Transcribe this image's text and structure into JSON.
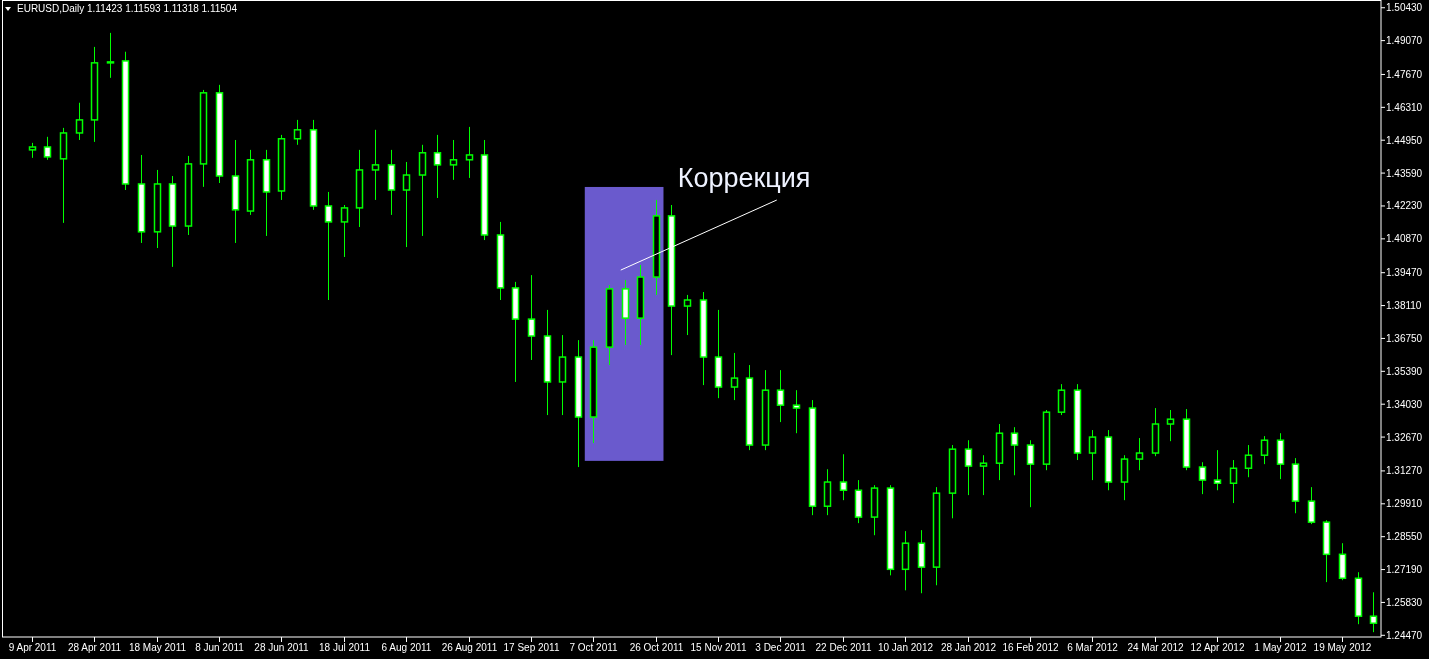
{
  "chart_data": {
    "type": "candlestick",
    "title": "EURUSD,Daily  1.11423 1.11593 1.11318 1.11504",
    "categories": [
      "9 Apr 2011",
      null,
      null,
      null,
      "28 Apr 2011",
      null,
      null,
      null,
      "18 May 2011",
      null,
      null,
      null,
      "8 Jun 2011",
      null,
      null,
      null,
      "28 Jun 2011",
      null,
      null,
      null,
      "18 Jul 2011",
      null,
      null,
      null,
      "6 Aug 2011",
      null,
      null,
      null,
      "26 Aug 2011",
      null,
      null,
      null,
      "17 Sep 2011",
      null,
      null,
      null,
      "7 Oct 2011",
      null,
      null,
      null,
      "26 Oct 2011",
      null,
      null,
      null,
      "15 Nov 2011",
      null,
      null,
      null,
      "3 Dec 2011",
      null,
      null,
      null,
      "22 Dec 2011",
      null,
      null,
      null,
      "10 Jan 2012",
      null,
      null,
      null,
      "28 Jan 2012",
      null,
      null,
      null,
      "16 Feb 2012",
      null,
      null,
      null,
      "6 Mar 2012",
      null,
      null,
      null,
      "24 Mar 2012",
      null,
      null,
      null,
      "12 Apr 2012",
      null,
      null,
      null,
      "1 May 2012",
      null,
      null,
      null,
      "19 May 2012",
      null,
      null
    ],
    "color": "#00ff00",
    "ohlc": [
      [
        1.4455,
        1.4484,
        1.4422,
        1.4467
      ],
      [
        1.4467,
        1.4509,
        1.4414,
        1.4426
      ],
      [
        1.4418,
        1.4546,
        1.4153,
        1.4525
      ],
      [
        1.4525,
        1.465,
        1.4496,
        1.4579
      ],
      [
        1.4579,
        1.4881,
        1.4488,
        1.4815
      ],
      [
        1.4815,
        1.4939,
        1.4753,
        1.4819
      ],
      [
        1.4823,
        1.4861,
        1.4289,
        1.4314
      ],
      [
        1.4314,
        1.4434,
        1.407,
        1.4116
      ],
      [
        1.4116,
        1.4372,
        1.4049,
        1.4314
      ],
      [
        1.4314,
        1.4347,
        1.3971,
        1.414
      ],
      [
        1.414,
        1.443,
        1.4103,
        1.4397
      ],
      [
        1.4397,
        1.4703,
        1.4302,
        1.4691
      ],
      [
        1.4691,
        1.4724,
        1.4318,
        1.4347
      ],
      [
        1.4347,
        1.4496,
        1.407,
        1.4207
      ],
      [
        1.4202,
        1.4455,
        1.4186,
        1.4414
      ],
      [
        1.4414,
        1.4455,
        1.4099,
        1.4281
      ],
      [
        1.4285,
        1.4517,
        1.4248,
        1.4501
      ],
      [
        1.4501,
        1.4579,
        1.4476,
        1.4538
      ],
      [
        1.4538,
        1.4579,
        1.4207,
        1.4223
      ],
      [
        1.4223,
        1.4281,
        1.3834,
        1.4157
      ],
      [
        1.4157,
        1.4227,
        1.4012,
        1.4215
      ],
      [
        1.4215,
        1.4455,
        1.4136,
        1.4372
      ],
      [
        1.4372,
        1.4538,
        1.4248,
        1.4393
      ],
      [
        1.4393,
        1.4455,
        1.4186,
        1.4289
      ],
      [
        1.4289,
        1.4405,
        1.4053,
        1.4351
      ],
      [
        1.4351,
        1.4476,
        1.4099,
        1.4443
      ],
      [
        1.4443,
        1.4517,
        1.4256,
        1.4393
      ],
      [
        1.4393,
        1.4496,
        1.4331,
        1.4414
      ],
      [
        1.4414,
        1.455,
        1.4339,
        1.4434
      ],
      [
        1.4434,
        1.4496,
        1.4082,
        1.4103
      ],
      [
        1.4103,
        1.4157,
        1.3834,
        1.3884
      ],
      [
        1.3884,
        1.3909,
        1.3495,
        1.3755
      ],
      [
        1.3755,
        1.3937,
        1.3586,
        1.3685
      ],
      [
        1.3685,
        1.3793,
        1.3358,
        1.3495
      ],
      [
        1.3495,
        1.3689,
        1.3358,
        1.3598
      ],
      [
        1.3598,
        1.3668,
        1.3143,
        1.335
      ],
      [
        1.335,
        1.3668,
        1.3242,
        1.3639
      ],
      [
        1.3639,
        1.3896,
        1.3565,
        1.388
      ],
      [
        1.388,
        1.3917,
        1.3648,
        1.3759
      ],
      [
        1.3759,
        1.3979,
        1.3648,
        1.3929
      ],
      [
        1.3929,
        1.4248,
        1.3855,
        1.4182
      ],
      [
        1.4182,
        1.4227,
        1.3606,
        1.3809
      ],
      [
        1.3809,
        1.3855,
        1.3689,
        1.3834
      ],
      [
        1.3834,
        1.3867,
        1.3482,
        1.3598
      ],
      [
        1.3598,
        1.3793,
        1.3428,
        1.3474
      ],
      [
        1.3474,
        1.3615,
        1.342,
        1.3511
      ],
      [
        1.3511,
        1.3565,
        1.3213,
        1.3234
      ],
      [
        1.3234,
        1.3544,
        1.3213,
        1.3461
      ],
      [
        1.3461,
        1.3544,
        1.3329,
        1.3399
      ],
      [
        1.3399,
        1.3461,
        1.3283,
        1.3387
      ],
      [
        1.3387,
        1.342,
        1.2944,
        1.2981
      ],
      [
        1.2981,
        1.3134,
        1.2944,
        1.3081
      ],
      [
        1.3081,
        1.3196,
        1.3006,
        1.3047
      ],
      [
        1.3047,
        1.3089,
        1.2911,
        1.2936
      ],
      [
        1.2936,
        1.3068,
        1.2861,
        1.3056
      ],
      [
        1.3056,
        1.3068,
        1.2695,
        1.272
      ],
      [
        1.272,
        1.2878,
        1.2633,
        1.2828
      ],
      [
        1.2828,
        1.2882,
        1.2621,
        1.2729
      ],
      [
        1.2729,
        1.306,
        1.2654,
        1.3035
      ],
      [
        1.3035,
        1.3234,
        1.2931,
        1.3217
      ],
      [
        1.3217,
        1.3254,
        1.3027,
        1.3147
      ],
      [
        1.3147,
        1.3192,
        1.3027,
        1.3159
      ],
      [
        1.3159,
        1.3321,
        1.3089,
        1.3283
      ],
      [
        1.3283,
        1.3308,
        1.3109,
        1.3234
      ],
      [
        1.3234,
        1.3254,
        1.2977,
        1.3155
      ],
      [
        1.3155,
        1.3379,
        1.313,
        1.337
      ],
      [
        1.337,
        1.3486,
        1.3358,
        1.3461
      ],
      [
        1.3461,
        1.3486,
        1.3172,
        1.3201
      ],
      [
        1.3201,
        1.3296,
        1.3089,
        1.3267
      ],
      [
        1.3267,
        1.3296,
        1.3047,
        1.3081
      ],
      [
        1.3081,
        1.3192,
        1.3006,
        1.3176
      ],
      [
        1.3176,
        1.3263,
        1.313,
        1.3201
      ],
      [
        1.3201,
        1.3387,
        1.3188,
        1.3321
      ],
      [
        1.3321,
        1.3379,
        1.325,
        1.3341
      ],
      [
        1.3341,
        1.3383,
        1.313,
        1.3143
      ],
      [
        1.3143,
        1.3163,
        1.3031,
        1.3089
      ],
      [
        1.3089,
        1.3213,
        1.3047,
        1.3076
      ],
      [
        1.3076,
        1.3172,
        1.2994,
        1.3138
      ],
      [
        1.3138,
        1.3234,
        1.3101,
        1.3192
      ],
      [
        1.3192,
        1.3271,
        1.3155,
        1.3254
      ],
      [
        1.3254,
        1.3283,
        1.3093,
        1.3155
      ],
      [
        1.3155,
        1.318,
        1.2952,
        1.3002
      ],
      [
        1.3002,
        1.306,
        1.2907,
        1.2915
      ],
      [
        1.2915,
        1.2923,
        1.2667,
        1.2782
      ],
      [
        1.2782,
        1.2828,
        1.2675,
        1.2683
      ],
      [
        1.2683,
        1.2708,
        1.2493,
        1.2526
      ],
      [
        1.2526,
        1.2625,
        1.246,
        1.2497
      ]
    ],
    "ylim": [
      1.244,
      1.5075
    ],
    "yticks": [
      {
        "value": 1.5043,
        "label": "1.50430"
      },
      {
        "value": 1.4907,
        "label": "1.49070"
      },
      {
        "value": 1.4767,
        "label": "1.47670"
      },
      {
        "value": 1.4631,
        "label": "1.46310"
      },
      {
        "value": 1.4495,
        "label": "1.44950"
      },
      {
        "value": 1.4359,
        "label": "1.43590"
      },
      {
        "value": 1.4223,
        "label": "1.42230"
      },
      {
        "value": 1.4087,
        "label": "1.40870"
      },
      {
        "value": 1.3947,
        "label": "1.39470"
      },
      {
        "value": 1.3811,
        "label": "1.38110"
      },
      {
        "value": 1.3675,
        "label": "1.36750"
      },
      {
        "value": 1.3539,
        "label": "1.35390"
      },
      {
        "value": 1.3403,
        "label": "1.34030"
      },
      {
        "value": 1.3267,
        "label": "1.32670"
      },
      {
        "value": 1.3127,
        "label": "1.31270"
      },
      {
        "value": 1.2991,
        "label": "1.29910"
      },
      {
        "value": 1.2855,
        "label": "1.28550"
      },
      {
        "value": 1.2719,
        "label": "1.27190"
      },
      {
        "value": 1.2583,
        "label": "1.25830"
      },
      {
        "value": 1.2447,
        "label": "1.24470"
      }
    ],
    "annotations": [
      "Коррекция"
    ],
    "grid": false
  }
}
